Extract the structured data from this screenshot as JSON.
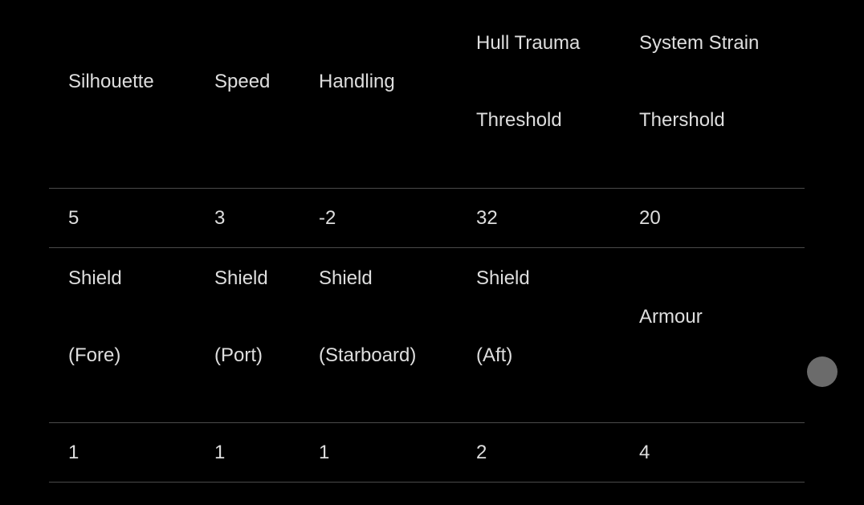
{
  "table": {
    "header": [
      [
        "Silhouette"
      ],
      [
        "Speed"
      ],
      [
        "Handling"
      ],
      [
        "Hull Trauma",
        "Threshold"
      ],
      [
        "System Strain",
        "Thershold"
      ]
    ],
    "values1": [
      "5",
      "3",
      "-2",
      "32",
      "20"
    ],
    "header2": [
      [
        "Shield",
        "(Fore)"
      ],
      [
        "Shield",
        "(Port)"
      ],
      [
        "Shield",
        "(Starboard)"
      ],
      [
        "Shield",
        "(Aft)"
      ],
      [
        "Armour"
      ]
    ],
    "values2": [
      "1",
      "1",
      "1",
      "2",
      "4"
    ]
  },
  "colors": {
    "background": "#000000",
    "text": "#dedede",
    "divider": "#4a4a4a",
    "scroll_handle": "#6b6b6b"
  }
}
